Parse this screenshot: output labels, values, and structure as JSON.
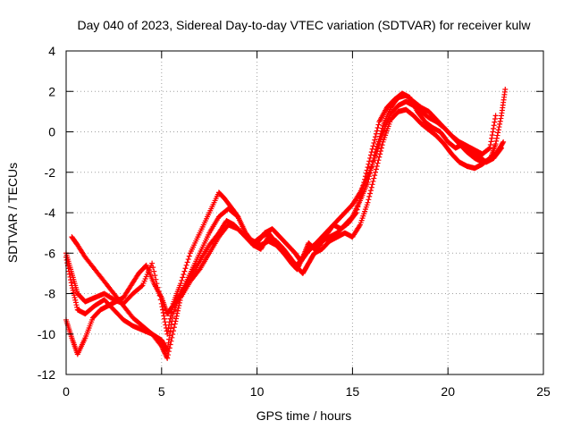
{
  "chart_data": {
    "type": "scatter",
    "title": "Day 040 of 2023, Sidereal Day-to-day VTEC variation (SDTVAR) for receiver kulw",
    "xlabel": "GPS time / hours",
    "ylabel": "SDTVAR / TECUs",
    "xlim": [
      0,
      25
    ],
    "ylim": [
      -12,
      4
    ],
    "x_ticks": [
      0,
      5,
      10,
      15,
      20,
      25
    ],
    "y_ticks": [
      -12,
      -10,
      -8,
      -6,
      -4,
      -2,
      0,
      2,
      4
    ],
    "x_tick_labels": [
      "0",
      "5",
      "10",
      "15",
      "20",
      "25"
    ],
    "y_tick_labels": [
      "-12",
      "-10",
      "-8",
      "-6",
      "-4",
      "-2",
      "0",
      "2",
      "4"
    ],
    "grid": true,
    "marker": "+",
    "color": "#ff0000",
    "series": [
      {
        "x": [
          0.0,
          0.3,
          0.6,
          1.0,
          1.5,
          2.0,
          2.5,
          3.0,
          3.5,
          4.0,
          4.5,
          5.0,
          5.3,
          5.6,
          6.0,
          6.5,
          7.0,
          7.5,
          8.0,
          8.3,
          8.7,
          9.0,
          9.4,
          9.8,
          10.2,
          10.6,
          11.0,
          11.4,
          11.8,
          12.1,
          12.4,
          12.7,
          13.0,
          13.3,
          13.7,
          14.0,
          14.4,
          14.8,
          15.2,
          15.6,
          16.0,
          16.4,
          16.8,
          17.2,
          17.6,
          18.0,
          18.4,
          18.8,
          19.2,
          19.6,
          20.0,
          20.4,
          20.8,
          21.2,
          21.6,
          22.0,
          22.4,
          22.8
        ],
        "y": [
          -6.0,
          -7.0,
          -8.0,
          -8.4,
          -8.2,
          -8.0,
          -8.3,
          -8.5,
          -8.0,
          -7.6,
          -6.5,
          -8.5,
          -10.0,
          -8.5,
          -7.5,
          -6.0,
          -5.0,
          -4.0,
          -3.0,
          -3.3,
          -3.8,
          -4.2,
          -5.0,
          -5.5,
          -5.2,
          -5.0,
          -5.5,
          -6.0,
          -6.5,
          -6.8,
          -6.2,
          -5.5,
          -5.8,
          -5.6,
          -5.0,
          -4.6,
          -4.8,
          -4.5,
          -4.0,
          -2.5,
          -1.0,
          0.5,
          1.2,
          1.6,
          1.9,
          1.7,
          1.0,
          0.5,
          0.2,
          0.0,
          -0.5,
          -0.8,
          -0.6,
          -1.0,
          -1.2,
          -1.5,
          -1.3,
          -0.8
        ]
      },
      {
        "x": [
          0.0,
          0.3,
          0.6,
          1.0,
          1.5,
          2.0,
          2.5,
          3.0,
          3.5,
          4.0,
          4.5,
          5.0,
          5.3,
          5.6,
          6.0,
          6.5,
          7.0,
          7.5,
          8.0,
          8.5,
          9.0,
          9.4,
          9.8,
          10.2,
          10.6,
          11.0,
          11.4,
          11.8,
          12.1,
          12.4,
          12.7,
          13.0,
          13.4,
          13.8,
          14.2,
          14.6,
          15.0,
          15.4,
          15.8,
          16.2,
          16.6,
          17.0,
          17.4,
          17.8,
          18.2,
          18.6,
          19.0,
          19.4,
          19.8,
          20.2,
          20.6,
          21.0,
          21.4,
          21.8,
          22.2,
          22.6,
          22.9
        ],
        "y": [
          -6.2,
          -7.6,
          -8.8,
          -9.0,
          -8.6,
          -8.3,
          -8.8,
          -9.3,
          -9.6,
          -9.8,
          -10.0,
          -10.3,
          -10.8,
          -9.0,
          -8.0,
          -7.0,
          -6.0,
          -5.0,
          -4.2,
          -3.8,
          -4.2,
          -5.0,
          -5.6,
          -5.8,
          -5.2,
          -5.4,
          -5.8,
          -6.3,
          -6.7,
          -7.0,
          -6.5,
          -6.0,
          -5.8,
          -5.4,
          -5.2,
          -5.0,
          -5.2,
          -4.6,
          -3.5,
          -2.0,
          -0.5,
          0.6,
          1.0,
          1.1,
          0.8,
          0.4,
          0.1,
          -0.2,
          -0.6,
          -1.1,
          -1.5,
          -1.7,
          -1.8,
          -1.6,
          -1.3,
          -1.0,
          -0.5
        ]
      },
      {
        "x": [
          0.3,
          0.6,
          1.0,
          1.5,
          2.0,
          2.5,
          3.0,
          3.5,
          4.0,
          4.5,
          5.0,
          5.3,
          5.7,
          6.0,
          6.5,
          7.0,
          7.5,
          8.0,
          8.5,
          9.0,
          9.4,
          9.8,
          10.2,
          10.6,
          11.0,
          11.4,
          11.8,
          12.1,
          12.4,
          12.7,
          13.0,
          13.4,
          13.8,
          14.2,
          14.6,
          15.0,
          15.4,
          15.8,
          16.2,
          16.6,
          17.0,
          17.4,
          17.8,
          18.2,
          18.6,
          19.0,
          19.4,
          19.8,
          20.2,
          20.6,
          21.0,
          21.4,
          21.8,
          22.2,
          22.5,
          22.8,
          23.0
        ],
        "y": [
          -5.2,
          -5.6,
          -6.2,
          -6.8,
          -7.4,
          -8.0,
          -8.6,
          -9.2,
          -9.6,
          -10.0,
          -10.6,
          -11.2,
          -9.5,
          -8.2,
          -7.4,
          -6.8,
          -6.0,
          -5.2,
          -4.6,
          -4.8,
          -5.2,
          -5.6,
          -5.6,
          -5.4,
          -5.6,
          -6.0,
          -6.4,
          -6.6,
          -6.2,
          -5.8,
          -5.6,
          -5.4,
          -5.2,
          -5.0,
          -4.6,
          -4.2,
          -3.4,
          -2.5,
          -1.0,
          0.3,
          1.2,
          1.7,
          1.8,
          1.5,
          1.2,
          1.0,
          0.6,
          0.2,
          -0.2,
          -0.6,
          -1.0,
          -1.3,
          -1.5,
          -1.4,
          -0.6,
          0.8,
          2.1
        ]
      },
      {
        "x": [
          0.0,
          0.3,
          0.6,
          1.0,
          1.4,
          1.8,
          2.2,
          2.6,
          3.0,
          3.4,
          3.8,
          4.2,
          4.6,
          5.0,
          5.3,
          5.6,
          6.0,
          6.5,
          7.0,
          7.5,
          8.0,
          8.4,
          8.8,
          9.2,
          9.6,
          10.0,
          10.4,
          10.8,
          11.2,
          11.6,
          12.0,
          12.3,
          12.6,
          13.0,
          13.4,
          13.8,
          14.2,
          14.6,
          15.0,
          15.4,
          15.8,
          16.2,
          16.6,
          17.0,
          17.4,
          17.8,
          18.2,
          18.6,
          19.0,
          19.4,
          19.8,
          20.2,
          20.6,
          21.0,
          21.4,
          21.8,
          22.2,
          22.5
        ],
        "y": [
          -9.3,
          -10.2,
          -11.0,
          -10.2,
          -9.2,
          -8.8,
          -8.6,
          -8.4,
          -8.2,
          -7.6,
          -7.0,
          -6.6,
          -7.5,
          -8.2,
          -9.0,
          -8.6,
          -8.0,
          -7.2,
          -6.4,
          -5.6,
          -5.0,
          -4.4,
          -4.6,
          -5.0,
          -5.3,
          -5.5,
          -5.0,
          -4.8,
          -5.2,
          -5.6,
          -6.0,
          -6.4,
          -6.0,
          -5.6,
          -5.2,
          -4.8,
          -4.4,
          -4.0,
          -3.6,
          -3.0,
          -2.2,
          -1.2,
          0.0,
          0.9,
          1.3,
          1.5,
          1.3,
          1.0,
          0.7,
          0.5,
          0.2,
          -0.2,
          -0.5,
          -0.7,
          -0.9,
          -1.1,
          -0.8,
          0.8
        ]
      }
    ]
  }
}
